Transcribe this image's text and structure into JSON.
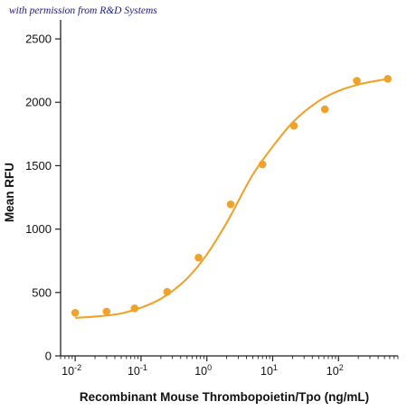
{
  "credit": "with permission from R&D Systems",
  "colors": {
    "series": "#F0A32A",
    "axis": "#222222",
    "text": "#111111",
    "credit": "#1a1a8c"
  },
  "chart_data": {
    "type": "scatter",
    "xscale": "log",
    "xlabel": "Recombinant Mouse Thrombopoietin/Tpo (ng/mL)",
    "ylabel": "Mean RFU",
    "xlim": [
      0.006,
      800
    ],
    "ylim": [
      0,
      2650
    ],
    "xticks": [
      {
        "value": 0.01,
        "base": "10",
        "exp": "-2"
      },
      {
        "value": 0.1,
        "base": "10",
        "exp": "-1"
      },
      {
        "value": 1,
        "base": "10",
        "exp": "0"
      },
      {
        "value": 10,
        "base": "10",
        "exp": "1"
      },
      {
        "value": 100,
        "base": "10",
        "exp": "2"
      }
    ],
    "yticks": [
      "0",
      "500",
      "1000",
      "1500",
      "2000",
      "2500"
    ],
    "grid": false,
    "legend": "none",
    "series": [
      {
        "x": [
          0.01,
          0.03,
          0.08,
          0.25,
          0.75,
          2.3,
          7,
          21,
          62,
          190,
          560
        ],
        "y": [
          340,
          350,
          375,
          505,
          775,
          1195,
          1510,
          1815,
          1945,
          2170,
          2185
        ]
      }
    ],
    "fit": {
      "type": "4PL",
      "x": [
        0.01,
        0.02,
        0.05,
        0.1,
        0.2,
        0.5,
        1,
        2,
        5,
        10,
        20,
        50,
        100,
        200,
        560
      ],
      "y": [
        300,
        310,
        335,
        380,
        450,
        610,
        800,
        1050,
        1430,
        1650,
        1840,
        2010,
        2090,
        2140,
        2185
      ]
    }
  }
}
